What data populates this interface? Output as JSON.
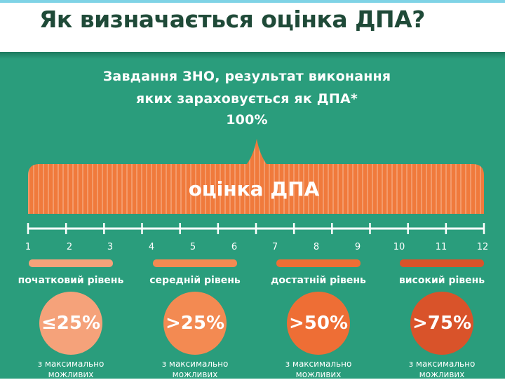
{
  "header": {
    "title": "Як визначається оцінка ДПА?"
  },
  "intro": {
    "line1": "Завдання ЗНО, результат виконання",
    "line2": "яких зараховується як ДПА*",
    "total": "100%"
  },
  "bar": {
    "label": "оцінка ДПА",
    "color": "#f07a3c"
  },
  "scale": {
    "ticks": [
      "1",
      "2",
      "3",
      "4",
      "5",
      "6",
      "7",
      "8",
      "9",
      "10",
      "11",
      "12"
    ]
  },
  "levels": [
    {
      "name": "початковий рівень",
      "threshold": "≤25%",
      "note_line1": "з максимально",
      "note_line2": "можливих",
      "color": "#f5a27a"
    },
    {
      "name": "середній рівень",
      "threshold": ">25%",
      "note_line1": "з максимально",
      "note_line2": "можливих",
      "color": "#f38a52"
    },
    {
      "name": "достатній рівень",
      "threshold": ">50%",
      "note_line1": "з максимально",
      "note_line2": "можливих",
      "color": "#ee6e35"
    },
    {
      "name": "високий рівень",
      "threshold": ">75%",
      "note_line1": "з максимально",
      "note_line2": "можливих",
      "color": "#d9532a"
    }
  ]
}
